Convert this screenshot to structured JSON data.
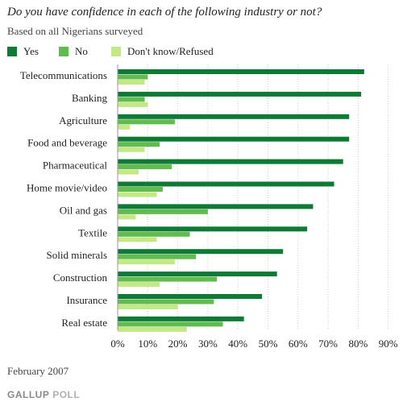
{
  "title": "Do you have confidence in each of the following industry or not?",
  "subtitle": "Based on all Nigerians surveyed",
  "footer_date": "February 2007",
  "logo": {
    "brand": "GALLUP",
    "poll": "POLL"
  },
  "colors": {
    "yes": "#0f7a35",
    "no": "#62bb4f",
    "dont_know": "#c5e886",
    "grid": "#cfcfcf"
  },
  "chart_data": {
    "type": "bar",
    "orientation": "horizontal",
    "title": "Do you have confidence in each of the following industry or not?",
    "subtitle": "Based on all Nigerians surveyed",
    "xlabel": "",
    "ylabel": "",
    "xlim": [
      0,
      90
    ],
    "ticks": [
      0,
      10,
      20,
      30,
      40,
      50,
      60,
      70,
      80,
      90
    ],
    "tick_labels": [
      "0%",
      "10%",
      "20%",
      "30%",
      "40%",
      "50%",
      "60%",
      "70%",
      "80%",
      "90%"
    ],
    "grid": true,
    "legend_position": "top-left",
    "categories": [
      "Telecommunications",
      "Banking",
      "Agriculture",
      "Food and beverage",
      "Pharmaceutical",
      "Home movie/video",
      "Oil and gas",
      "Textile",
      "Solid minerals",
      "Construction",
      "Insurance",
      "Real estate"
    ],
    "series": [
      {
        "name": "Yes",
        "color": "#0f7a35",
        "values": [
          82,
          81,
          77,
          77,
          75,
          72,
          65,
          63,
          55,
          53,
          48,
          42
        ]
      },
      {
        "name": "No",
        "color": "#62bb4f",
        "values": [
          10,
          9,
          19,
          14,
          18,
          15,
          30,
          24,
          26,
          33,
          32,
          35
        ]
      },
      {
        "name": "Don't know/Refused",
        "color": "#c5e886",
        "values": [
          9,
          10,
          4,
          9,
          7,
          13,
          6,
          13,
          19,
          14,
          20,
          23
        ]
      }
    ]
  }
}
